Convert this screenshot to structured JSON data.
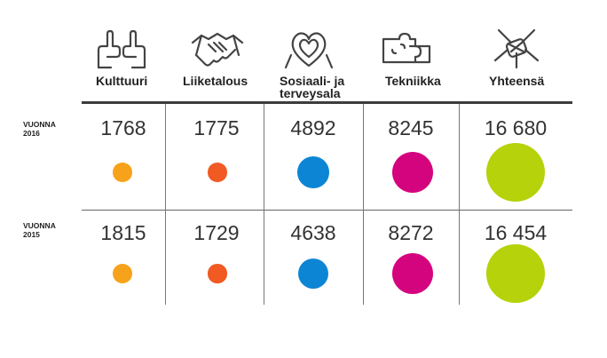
{
  "categories": [
    {
      "label": "Kulttuuri",
      "icon": "hands-frame-icon"
    },
    {
      "label": "Liiketalous",
      "icon": "handshake-icon"
    },
    {
      "label": "Sosiaali- ja\nterveysala",
      "icon": "heart-hands-icon"
    },
    {
      "label": "Tekniikka",
      "icon": "puzzle-hands-icon"
    },
    {
      "label": "Yhteensä",
      "icon": "stacked-hands-icon"
    }
  ],
  "rows": [
    {
      "label": "VUONNA\n2016",
      "values_text": [
        "1768",
        "1775",
        "4892",
        "8245",
        "16 680"
      ]
    },
    {
      "label": "VUONNA\n2015",
      "values_text": [
        "1815",
        "1729",
        "4638",
        "8272",
        "16 454"
      ]
    }
  ],
  "colors": {
    "kulttuuri": "#f7a21b",
    "liiketalous": "#f15a22",
    "sosiaali": "#0c85d4",
    "tekniikka": "#d4047e",
    "yhteensa": "#b5d20a",
    "icon_stroke": "#444444"
  },
  "chart_data": {
    "type": "table",
    "categories": [
      "Kulttuuri",
      "Liiketalous",
      "Sosiaali- ja terveysala",
      "Tekniikka",
      "Yhteensä"
    ],
    "series": [
      {
        "name": "VUONNA 2016",
        "values": [
          1768,
          1775,
          4892,
          8245,
          16680
        ]
      },
      {
        "name": "VUONNA 2015",
        "values": [
          1815,
          1729,
          4638,
          8272,
          16454
        ]
      }
    ],
    "encoding": "bubble area proportional to value"
  }
}
